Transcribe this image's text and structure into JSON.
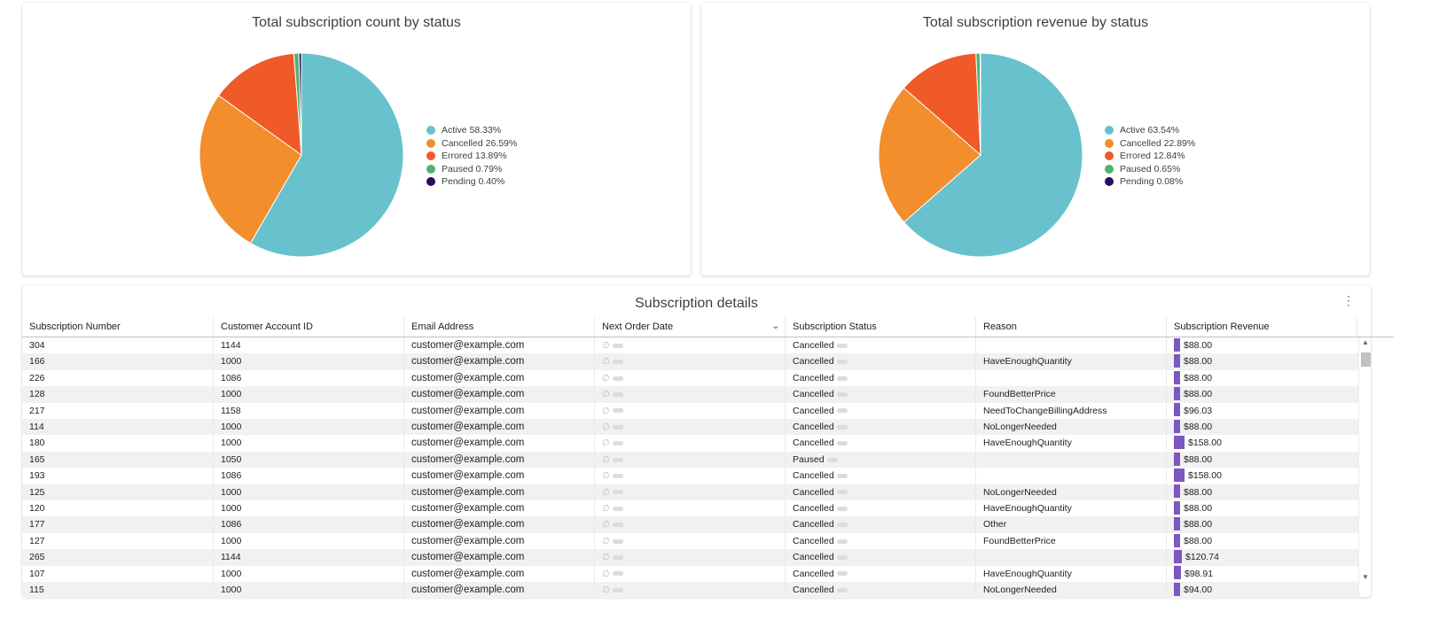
{
  "charts": [
    {
      "title": "Total subscription count by status",
      "legend": [
        "Active 58.33%",
        "Cancelled 26.59%",
        "Errored 13.89%",
        "Paused 0.79%",
        "Pending 0.40%"
      ]
    },
    {
      "title": "Total subscription revenue by status",
      "legend": [
        "Active 63.54%",
        "Cancelled 22.89%",
        "Errored 12.84%",
        "Paused 0.65%",
        "Pending 0.08%"
      ]
    }
  ],
  "colors": {
    "Active": "#67c2cd",
    "Cancelled": "#f28e2b",
    "Errored": "#ef5a28",
    "Paused": "#4fb36d",
    "Pending": "#2c0b5e",
    "revenue_bar": "#7e57c2"
  },
  "chart_data": [
    {
      "type": "pie",
      "title": "Total subscription count by status",
      "labels": [
        "Active",
        "Cancelled",
        "Errored",
        "Paused",
        "Pending"
      ],
      "values": [
        58.33,
        26.59,
        13.89,
        0.79,
        0.4
      ],
      "legend_position": "right"
    },
    {
      "type": "pie",
      "title": "Total subscription revenue by status",
      "labels": [
        "Active",
        "Cancelled",
        "Errored",
        "Paused",
        "Pending"
      ],
      "values": [
        63.54,
        22.89,
        12.84,
        0.65,
        0.08
      ],
      "legend_position": "right"
    }
  ],
  "table": {
    "title": "Subscription details",
    "menu_icon": "more-vert-icon",
    "sort_icon": "chevron-down-icon",
    "columns": [
      "Subscription Number",
      "Customer Account ID",
      "Email Address",
      "Next Order Date",
      "Subscription Status",
      "Reason",
      "Subscription Revenue"
    ],
    "null_symbol": "∅",
    "rows": [
      {
        "number": "304",
        "account": "1144",
        "email": "customer@example.com",
        "status": "Cancelled",
        "reason": "",
        "revenue": "$88.00",
        "rev_value": 88.0
      },
      {
        "number": "166",
        "account": "1000",
        "email": "customer@example.com",
        "status": "Cancelled",
        "reason": "HaveEnoughQuantity",
        "revenue": "$88.00",
        "rev_value": 88.0
      },
      {
        "number": "226",
        "account": "1086",
        "email": "customer@example.com",
        "status": "Cancelled",
        "reason": "",
        "revenue": "$88.00",
        "rev_value": 88.0
      },
      {
        "number": "128",
        "account": "1000",
        "email": "customer@example.com",
        "status": "Cancelled",
        "reason": "FoundBetterPrice",
        "revenue": "$88.00",
        "rev_value": 88.0
      },
      {
        "number": "217",
        "account": "1158",
        "email": "customer@example.com",
        "status": "Cancelled",
        "reason": "NeedToChangeBillingAddress",
        "revenue": "$96.03",
        "rev_value": 96.03
      },
      {
        "number": "114",
        "account": "1000",
        "email": "customer@example.com",
        "status": "Cancelled",
        "reason": "NoLongerNeeded",
        "revenue": "$88.00",
        "rev_value": 88.0
      },
      {
        "number": "180",
        "account": "1000",
        "email": "customer@example.com",
        "status": "Cancelled",
        "reason": "HaveEnoughQuantity",
        "revenue": "$158.00",
        "rev_value": 158.0
      },
      {
        "number": "165",
        "account": "1050",
        "email": "customer@example.com",
        "status": "Paused",
        "reason": "",
        "revenue": "$88.00",
        "rev_value": 88.0
      },
      {
        "number": "193",
        "account": "1086",
        "email": "customer@example.com",
        "status": "Cancelled",
        "reason": "",
        "revenue": "$158.00",
        "rev_value": 158.0
      },
      {
        "number": "125",
        "account": "1000",
        "email": "customer@example.com",
        "status": "Cancelled",
        "reason": "NoLongerNeeded",
        "revenue": "$88.00",
        "rev_value": 88.0
      },
      {
        "number": "120",
        "account": "1000",
        "email": "customer@example.com",
        "status": "Cancelled",
        "reason": "HaveEnoughQuantity",
        "revenue": "$88.00",
        "rev_value": 88.0
      },
      {
        "number": "177",
        "account": "1086",
        "email": "customer@example.com",
        "status": "Cancelled",
        "reason": "Other",
        "revenue": "$88.00",
        "rev_value": 88.0
      },
      {
        "number": "127",
        "account": "1000",
        "email": "customer@example.com",
        "status": "Cancelled",
        "reason": "FoundBetterPrice",
        "revenue": "$88.00",
        "rev_value": 88.0
      },
      {
        "number": "265",
        "account": "1144",
        "email": "customer@example.com",
        "status": "Cancelled",
        "reason": "",
        "revenue": "$120.74",
        "rev_value": 120.74
      },
      {
        "number": "107",
        "account": "1000",
        "email": "customer@example.com",
        "status": "Cancelled",
        "reason": "HaveEnoughQuantity",
        "revenue": "$98.91",
        "rev_value": 98.91
      },
      {
        "number": "115",
        "account": "1000",
        "email": "customer@example.com",
        "status": "Cancelled",
        "reason": "NoLongerNeeded",
        "revenue": "$94.00",
        "rev_value": 94.0
      }
    ]
  }
}
